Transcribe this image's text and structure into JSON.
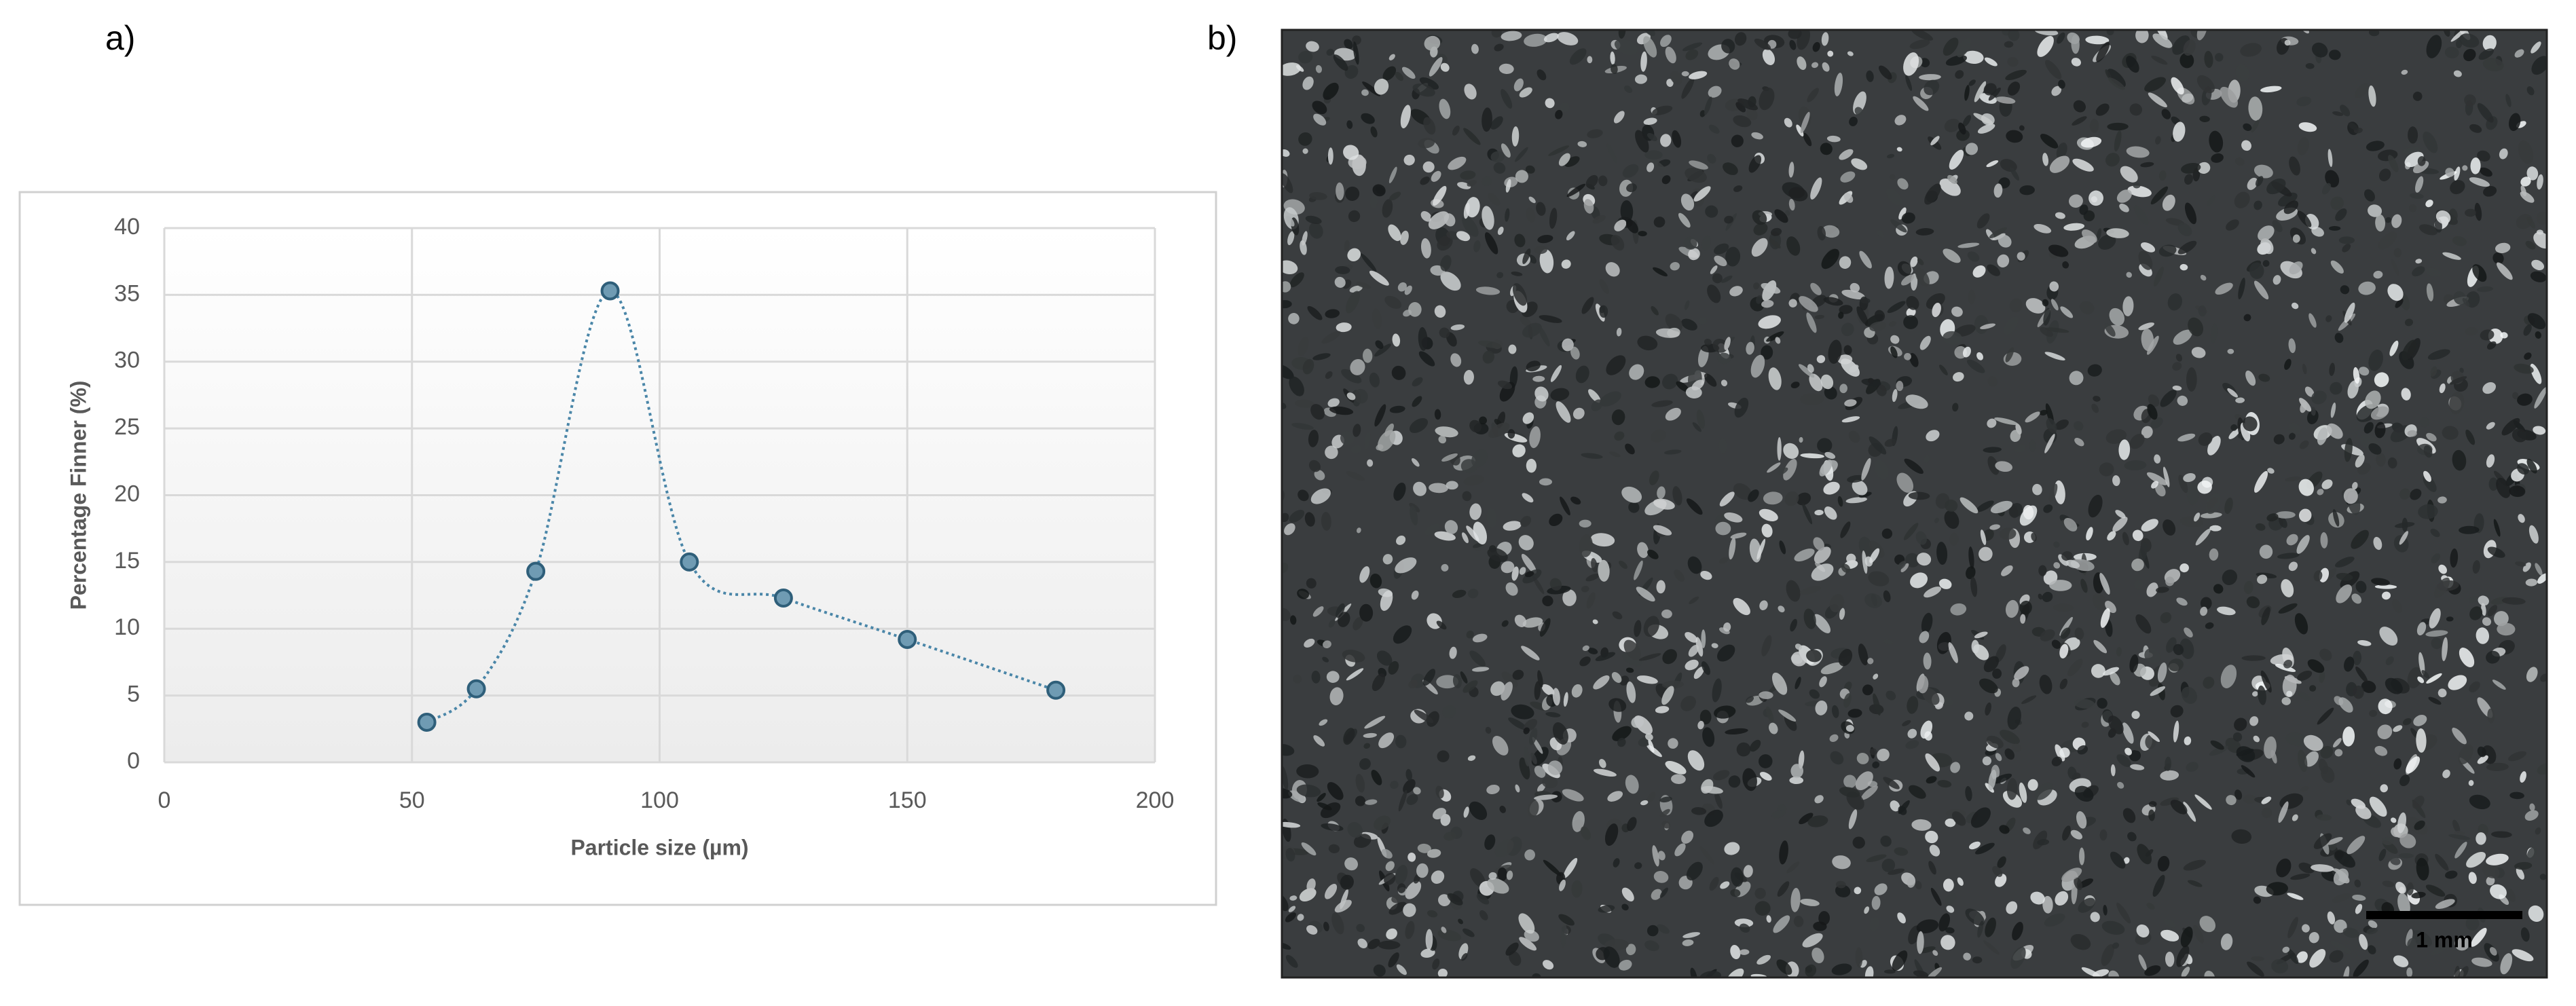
{
  "panels": {
    "a_label": "a)",
    "b_label": "b)",
    "scale_bar": "1 mm"
  },
  "chart_data": {
    "type": "scatter",
    "x_label": "Particle size (µm)",
    "y_label": "Percentage Finner (%)",
    "series": [
      {
        "color": "#6f9bb3",
        "x": [
          53,
          63,
          75,
          90,
          106,
          125,
          150,
          180
        ],
        "values": [
          3,
          5.5,
          14.3,
          35.3,
          15,
          12.3,
          9.2,
          5.4
        ]
      }
    ],
    "smooth_line": true,
    "xlim": [
      0,
      200
    ],
    "xticks": [
      0,
      50,
      100,
      150,
      200
    ],
    "ylim": [
      0,
      40
    ],
    "yticks": [
      0,
      5,
      10,
      15,
      20,
      25,
      30,
      35,
      40
    ],
    "grid": true
  }
}
